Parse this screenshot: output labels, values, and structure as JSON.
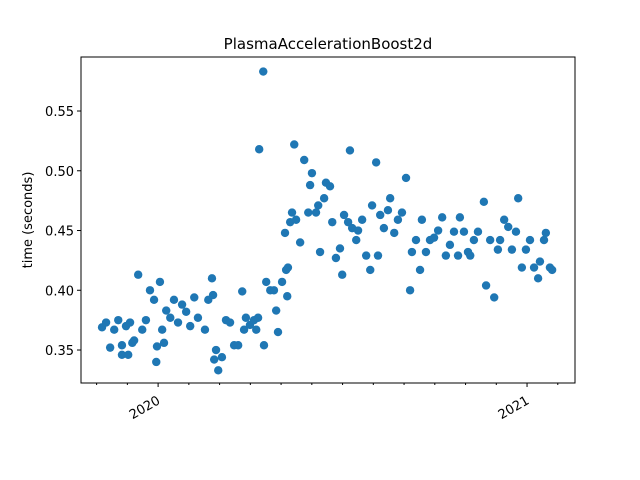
{
  "chart_data": {
    "type": "scatter",
    "title": "PlasmaAccelerationBoost2d",
    "y_label": "time (seconds)",
    "color": "#1f77b4",
    "xlim": [
      2019.791,
      2021.13
    ],
    "xticks": [
      2020,
      2021
    ],
    "ylim": [
      0.3224,
      0.5952
    ],
    "yticks": [
      0.35,
      {
        "value": 0.4,
        "label": "0.40"
      },
      0.45,
      {
        "value": 0.5,
        "label": "0.50"
      },
      0.55
    ],
    "x": [
      2019.848,
      2019.859,
      2019.87,
      2019.881,
      2019.892,
      2019.902,
      2019.913,
      2019.924,
      2019.935,
      2019.946,
      2019.957,
      2019.967,
      2019.978,
      2019.989,
      2019.997,
      2020.005,
      2020.011,
      2020.022,
      2020.033,
      2020.043,
      2020.054,
      2020.065,
      2020.076,
      2020.087,
      2020.098,
      2020.108,
      2019.902,
      2019.919,
      2019.93,
      2019.995,
      2020.016,
      2020.127,
      2020.136,
      2020.146,
      2020.149,
      2020.157,
      2020.152,
      2020.163,
      2020.173,
      2020.184,
      2020.195,
      2020.206,
      2020.217,
      2020.228,
      2020.233,
      2020.238,
      2020.249,
      2020.26,
      2020.266,
      2020.271,
      2020.274,
      2020.285,
      2020.287,
      2020.293,
      2020.304,
      2020.314,
      2020.32,
      2020.325,
      2020.336,
      2020.347,
      2020.352,
      2020.35,
      2020.344,
      2020.358,
      2020.363,
      2020.369,
      2020.374,
      2020.385,
      2020.396,
      2020.407,
      2020.412,
      2020.417,
      2020.428,
      2020.434,
      2020.439,
      2020.45,
      2020.455,
      2020.466,
      2020.472,
      2020.482,
      2020.493,
      2020.499,
      2020.504,
      2020.515,
      2020.52,
      2020.526,
      2020.537,
      2020.542,
      2020.553,
      2020.564,
      2020.575,
      2020.58,
      2020.591,
      2020.596,
      2020.602,
      2020.612,
      2020.623,
      2020.629,
      2020.64,
      2020.65,
      2020.661,
      2020.672,
      2020.683,
      2020.688,
      2020.699,
      2020.71,
      2020.715,
      2020.726,
      2020.737,
      2020.748,
      2020.759,
      2020.77,
      2020.78,
      2020.791,
      2020.802,
      2020.813,
      2020.818,
      2020.829,
      2020.84,
      2020.846,
      2020.856,
      2020.867,
      2020.883,
      2020.889,
      2020.9,
      2020.911,
      2020.921,
      2020.927,
      2020.938,
      2020.949,
      2020.959,
      2020.97,
      2020.976,
      2020.986,
      2020.997,
      2021.008,
      2021.019,
      2021.03,
      2021.035,
      2021.046,
      2021.051,
      2021.062,
      2021.068
    ],
    "values": [
      0.369,
      0.373,
      0.352,
      0.367,
      0.375,
      0.346,
      0.37,
      0.373,
      0.358,
      0.413,
      0.367,
      0.375,
      0.4,
      0.392,
      0.353,
      0.407,
      0.367,
      0.383,
      0.377,
      0.392,
      0.373,
      0.388,
      0.382,
      0.37,
      0.394,
      0.377,
      0.354,
      0.346,
      0.356,
      0.34,
      0.356,
      0.367,
      0.392,
      0.41,
      0.396,
      0.35,
      0.342,
      0.333,
      0.344,
      0.375,
      0.373,
      0.354,
      0.354,
      0.399,
      0.367,
      0.377,
      0.371,
      0.375,
      0.367,
      0.377,
      0.518,
      0.583,
      0.354,
      0.407,
      0.4,
      0.4,
      0.383,
      0.365,
      0.407,
      0.417,
      0.419,
      0.395,
      0.448,
      0.457,
      0.465,
      0.522,
      0.459,
      0.44,
      0.509,
      0.465,
      0.488,
      0.498,
      0.465,
      0.471,
      0.432,
      0.477,
      0.49,
      0.487,
      0.457,
      0.427,
      0.435,
      0.413,
      0.463,
      0.457,
      0.517,
      0.452,
      0.442,
      0.45,
      0.459,
      0.429,
      0.417,
      0.471,
      0.507,
      0.429,
      0.463,
      0.452,
      0.467,
      0.477,
      0.448,
      0.459,
      0.465,
      0.494,
      0.4,
      0.432,
      0.442,
      0.417,
      0.459,
      0.432,
      0.442,
      0.444,
      0.45,
      0.461,
      0.429,
      0.438,
      0.449,
      0.429,
      0.461,
      0.449,
      0.432,
      0.429,
      0.442,
      0.449,
      0.474,
      0.404,
      0.442,
      0.394,
      0.434,
      0.442,
      0.459,
      0.453,
      0.434,
      0.449,
      0.477,
      0.419,
      0.434,
      0.442,
      0.419,
      0.41,
      0.424,
      0.442,
      0.448,
      0.419,
      0.417
    ]
  }
}
